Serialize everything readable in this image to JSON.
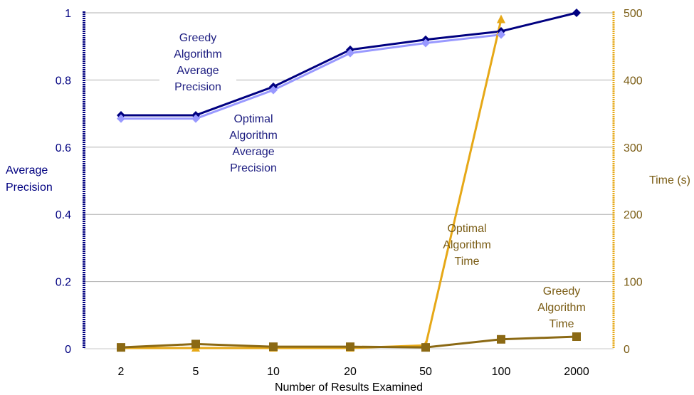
{
  "chart_data": {
    "type": "line",
    "title": "",
    "xlabel": "Number of Results Examined",
    "ylabel": [
      "Average",
      "Precision"
    ],
    "y2label": "Time (s)",
    "categories": [
      "2",
      "5",
      "10",
      "20",
      "50",
      "100",
      "2000"
    ],
    "ylim": [
      0,
      1
    ],
    "y2lim": [
      0,
      500
    ],
    "yticks": [
      "0",
      "0.2",
      "0.4",
      "0.6",
      "0.8",
      "1"
    ],
    "y2ticks": [
      "0",
      "100",
      "200",
      "300",
      "400",
      "500"
    ],
    "grid": "horizontal",
    "series": [
      {
        "name": "Greedy Algorithm Average Precision",
        "axis": "left",
        "marker": "diamond",
        "color": "#000080",
        "values": [
          0.695,
          0.695,
          0.78,
          0.89,
          0.92,
          0.945,
          1.0
        ]
      },
      {
        "name": "Optimal Algorithm Average Precision",
        "axis": "left",
        "marker": "diamond",
        "color": "#9999ff",
        "values": [
          0.685,
          0.685,
          0.77,
          0.88,
          0.91,
          0.935,
          null
        ]
      },
      {
        "name": "Optimal Algorithm Time",
        "axis": "right",
        "marker": "triangle",
        "color": "#e6a817",
        "values": [
          1,
          1,
          1,
          1,
          5,
          490,
          null
        ]
      },
      {
        "name": "Greedy Algorithm Time",
        "axis": "right",
        "marker": "square",
        "color": "#8b6914",
        "values": [
          2,
          7,
          3,
          3,
          2,
          14,
          18
        ]
      }
    ],
    "annotations": [
      {
        "lines": [
          "Greedy",
          "Algorithm",
          "Average",
          "Precision"
        ],
        "color": "#1c1c80"
      },
      {
        "lines": [
          "Optimal",
          "Algorithm",
          "Average",
          "Precision"
        ],
        "color": "#1c1c80"
      },
      {
        "lines": [
          "Optimal",
          "Algorithm",
          "Time"
        ],
        "color": "#7a5c14"
      },
      {
        "lines": [
          "Greedy",
          "Algorithm",
          "Time"
        ],
        "color": "#7a5c14"
      }
    ]
  }
}
